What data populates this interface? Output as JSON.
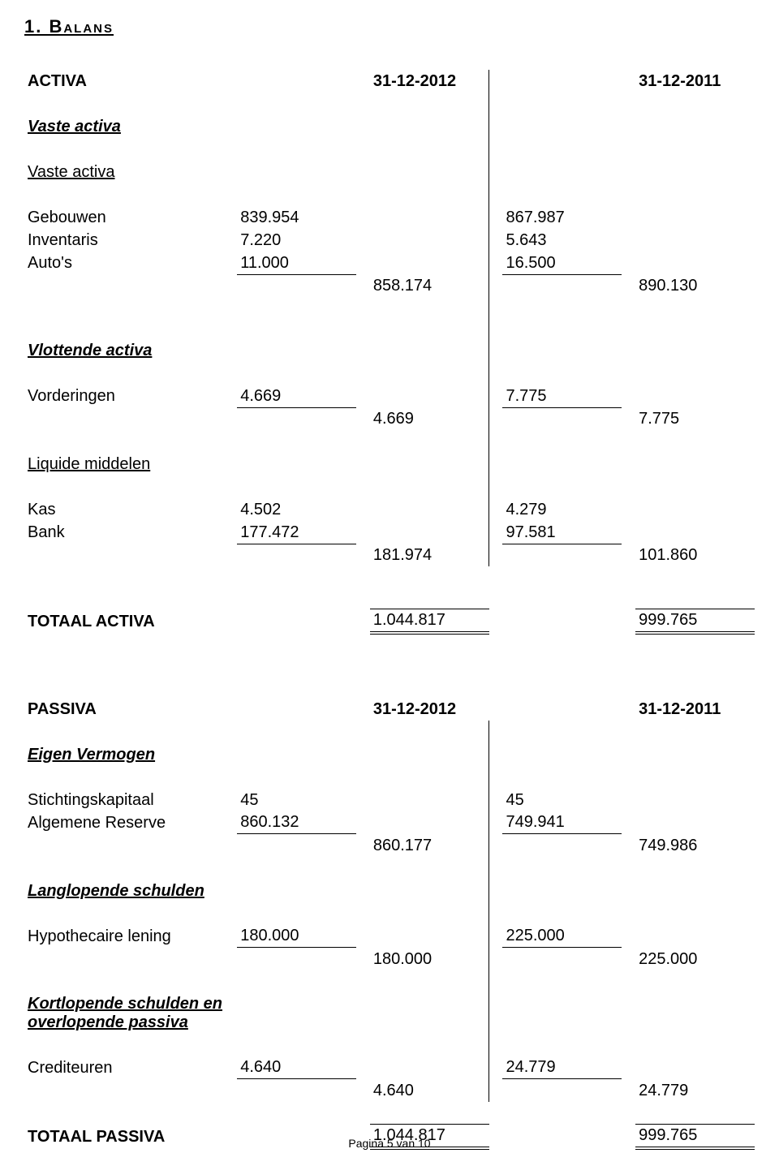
{
  "title": "1. Balans",
  "header": {
    "activa": "ACTIVA",
    "passiva": "PASSIVA",
    "date_2012": "31-12-2012",
    "date_2011": "31-12-2011"
  },
  "sections": {
    "vaste_activa": "Vaste activa",
    "vaste_activa_2": "Vaste activa",
    "vlottende_activa": "Vlottende activa",
    "liquide_middelen": "Liquide middelen",
    "totaal_activa": "TOTAAL ACTIVA",
    "eigen_vermogen": "Eigen Vermogen",
    "langlopende_schulden": "Langlopende schulden",
    "kortlopende": "Kortlopende schulden en overlopende passiva",
    "totaal_passiva": "TOTAAL PASSIVA"
  },
  "labels": {
    "gebouwen": "Gebouwen",
    "inventaris": "Inventaris",
    "autos": "Auto's",
    "vorderingen": "Vorderingen",
    "kas": "Kas",
    "bank": "Bank",
    "stichtingskapitaal": "Stichtingskapitaal",
    "algemene_reserve": "Algemene Reserve",
    "hypothecaire": "Hypothecaire lening",
    "crediteuren": "Crediteuren"
  },
  "values": {
    "gebouwen_2012": "839.954",
    "gebouwen_2011": "867.987",
    "inventaris_2012": "7.220",
    "inventaris_2011": "5.643",
    "autos_2012": "11.000",
    "autos_2011": "16.500",
    "vaste_sub_2012": "858.174",
    "vaste_sub_2011": "890.130",
    "vorderingen_2012": "4.669",
    "vorderingen_2011": "7.775",
    "vorderingen_sub_2012": "4.669",
    "vorderingen_sub_2011": "7.775",
    "kas_2012": "4.502",
    "kas_2011": "4.279",
    "bank_2012": "177.472",
    "bank_2011": "97.581",
    "liquide_sub_2012": "181.974",
    "liquide_sub_2011": "101.860",
    "totaal_activa_2012": "1.044.817",
    "totaal_activa_2011": "999.765",
    "stichtingskapitaal_2012": "45",
    "stichtingskapitaal_2011": "45",
    "algemene_reserve_2012": "860.132",
    "algemene_reserve_2011": "749.941",
    "eigen_sub_2012": "860.177",
    "eigen_sub_2011": "749.986",
    "hypothecaire_2012": "180.000",
    "hypothecaire_2011": "225.000",
    "lang_sub_2012": "180.000",
    "lang_sub_2011": "225.000",
    "crediteuren_2012": "4.640",
    "crediteuren_2011": "24.779",
    "kort_sub_2012": "4.640",
    "kort_sub_2011": "24.779",
    "totaal_passiva_2012": "1.044.817",
    "totaal_passiva_2011": "999.765"
  },
  "footer": "Pagina 5 van 10"
}
